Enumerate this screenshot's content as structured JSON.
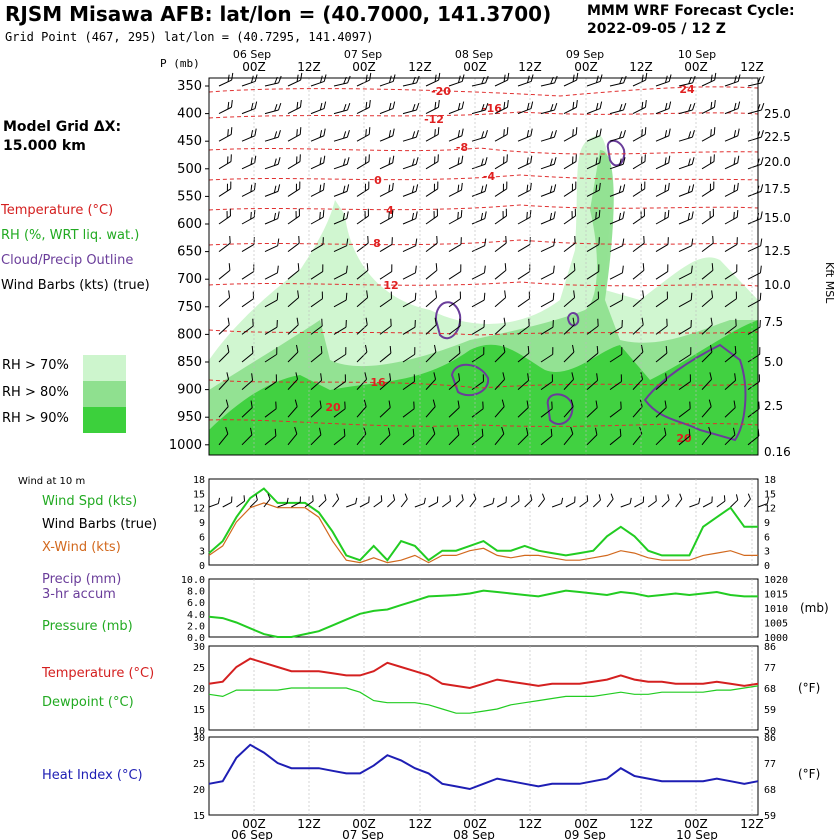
{
  "header": {
    "title": "RJSM Misawa AFB:  lat/lon = (40.7000, 141.3700)",
    "subtitle": "Grid Point (467, 295) lat/lon = (40.7295, 141.4097)",
    "cycle_line1": "MMM WRF Forecast Cycle:",
    "cycle_line2": "2022-09-05 / 12  Z"
  },
  "left_panel": {
    "grid_label_1": "Model Grid ΔX:",
    "grid_label_2": " 15.000 km",
    "legend": [
      {
        "text": "Temperature (°C)",
        "color": "#d42020"
      },
      {
        "text": "RH (%, WRT liq. wat.)",
        "color": "#22aa22"
      },
      {
        "text": "Cloud/Precip Outline",
        "color": "#6a3d9a"
      },
      {
        "text": "Wind Barbs (kts) (true)",
        "color": "#000000"
      }
    ],
    "rh_legend": [
      {
        "text": "RH > 70%",
        "color": "#cdf5cd"
      },
      {
        "text": "RH > 80%",
        "color": "#8fe08f"
      },
      {
        "text": "RH > 90%",
        "color": "#3cd03c"
      }
    ]
  },
  "time_axis": {
    "hours": [
      "00Z",
      "12Z",
      "00Z",
      "12Z",
      "00Z",
      "12Z",
      "00Z",
      "12Z",
      "00Z",
      "12Z"
    ],
    "dates": [
      "06 Sep",
      "07 Sep",
      "08 Sep",
      "09 Sep",
      "10 Sep"
    ]
  },
  "cross_section": {
    "p_label": "P (mb)",
    "pressure_ticks": [
      "350",
      "400",
      "450",
      "500",
      "550",
      "600",
      "650",
      "700",
      "750",
      "800",
      "850",
      "900",
      "950",
      "1000"
    ],
    "height_ticks": [
      "25.0",
      "22.5",
      "20.0",
      "17.5",
      "15.0",
      "12.5",
      "10.0",
      "7.5",
      "5.0",
      "2.5",
      "0.16"
    ],
    "height_label": "Kft MSL",
    "temp_labels": [
      "-20",
      "-16",
      "-12",
      "-8",
      "-4",
      "0",
      "4",
      "8",
      "12",
      "16",
      "20",
      "24",
      "20"
    ]
  },
  "panels": {
    "wind_header": "Wind at 10 m",
    "wind_labels": [
      {
        "text": "Wind Spd (kts)",
        "color": "#22aa22"
      },
      {
        "text": "Wind Barbs (true)",
        "color": "#000000"
      },
      {
        "text": "X-Wind (kts)",
        "color": "#d2691e"
      }
    ],
    "wind_ticks": [
      "18",
      "15",
      "12",
      "9",
      "6",
      "3",
      "0"
    ],
    "precip_labels": [
      {
        "text": "Precip (mm)",
        "color": "#6a3d9a"
      },
      {
        "text": "3-hr accum",
        "color": "#6a3d9a"
      },
      {
        "text": "Pressure (mb)",
        "color": "#22aa22"
      }
    ],
    "precip_ticks": [
      "10.0",
      "8.0",
      "6.0",
      "4.0",
      "2.0",
      "0.0"
    ],
    "pressure_ticks": [
      "1020",
      "1015",
      "1010",
      "1005",
      "1000"
    ],
    "pressure_unit": "(mb)",
    "temp_labels": [
      {
        "text": "Temperature (°C)",
        "color": "#d42020"
      },
      {
        "text": "Dewpoint (°C)",
        "color": "#22aa22"
      }
    ],
    "temp_ticks_c": [
      "30",
      "25",
      "20",
      "15",
      "10"
    ],
    "temp_ticks_f": [
      "86",
      "77",
      "68",
      "59",
      "50"
    ],
    "f_unit": "(°F)",
    "heat_label": {
      "text": "Heat Index (°C)",
      "color": "#1e1eb4"
    },
    "heat_ticks_c": [
      "30",
      "25",
      "20",
      "15"
    ],
    "heat_ticks_f": [
      "86",
      "77",
      "68",
      "59"
    ]
  },
  "chart_data": [
    {
      "type": "line",
      "title": "Wind at 10 m",
      "x": [
        "05 12Z",
        "05 15Z",
        "05 18Z",
        "05 21Z",
        "06 00Z",
        "06 03Z",
        "06 06Z",
        "06 09Z",
        "06 12Z",
        "06 15Z",
        "06 18Z",
        "06 21Z",
        "07 00Z",
        "07 03Z",
        "07 06Z",
        "07 09Z",
        "07 12Z",
        "07 15Z",
        "07 18Z",
        "07 21Z",
        "08 00Z",
        "08 03Z",
        "08 06Z",
        "08 09Z",
        "08 12Z",
        "08 15Z",
        "08 18Z",
        "08 21Z",
        "09 00Z",
        "09 03Z",
        "09 06Z",
        "09 09Z",
        "09 12Z",
        "09 15Z",
        "09 18Z",
        "09 21Z",
        "10 00Z",
        "10 03Z",
        "10 06Z",
        "10 09Z",
        "10 12Z"
      ],
      "ylim": [
        0,
        18
      ],
      "series": [
        {
          "name": "Wind Spd (kts)",
          "color": "#22cc22",
          "values": [
            2.5,
            5,
            10,
            14,
            16,
            13,
            13,
            13,
            11,
            7,
            2,
            1,
            4,
            1,
            5,
            4,
            1,
            3,
            3,
            4,
            5,
            3,
            3,
            4,
            3,
            2.5,
            2,
            2.5,
            3,
            6,
            8,
            6,
            3,
            2,
            2,
            2,
            8,
            10,
            12,
            8,
            8
          ]
        },
        {
          "name": "X-Wind (kts)",
          "color": "#d2691e",
          "values": [
            2,
            4,
            9,
            12,
            13,
            12,
            12,
            12,
            10,
            5,
            1,
            0.5,
            1.5,
            0.5,
            1,
            2,
            0.5,
            2,
            2,
            3,
            3.5,
            2,
            1.5,
            2,
            2,
            1.5,
            1,
            1,
            1.5,
            2,
            3,
            2.5,
            1.5,
            1,
            1,
            1,
            2,
            2.5,
            3,
            2,
            2
          ]
        }
      ]
    },
    {
      "type": "line",
      "title": "Pressure (mb)",
      "x": [
        "05 12Z",
        "05 15Z",
        "05 18Z",
        "05 21Z",
        "06 00Z",
        "06 03Z",
        "06 06Z",
        "06 09Z",
        "06 12Z",
        "06 15Z",
        "06 18Z",
        "06 21Z",
        "07 00Z",
        "07 03Z",
        "07 06Z",
        "07 09Z",
        "07 12Z",
        "07 15Z",
        "07 18Z",
        "07 21Z",
        "08 00Z",
        "08 03Z",
        "08 06Z",
        "08 09Z",
        "08 12Z",
        "08 15Z",
        "08 18Z",
        "08 21Z",
        "09 00Z",
        "09 03Z",
        "09 06Z",
        "09 09Z",
        "09 12Z",
        "09 15Z",
        "09 18Z",
        "09 21Z",
        "10 00Z",
        "10 03Z",
        "10 06Z",
        "10 09Z",
        "10 12Z"
      ],
      "ylim": [
        1000,
        1020
      ],
      "series": [
        {
          "name": "Pressure (mb)",
          "color": "#22cc22",
          "values": [
            1007,
            1006.5,
            1005,
            1003,
            1001,
            1000,
            1000,
            1001,
            1002,
            1004,
            1006,
            1008,
            1009,
            1009.5,
            1011,
            1012.5,
            1014,
            1014.2,
            1014.5,
            1015,
            1016,
            1015.5,
            1015,
            1014.5,
            1014,
            1015,
            1016,
            1015.5,
            1015,
            1014.5,
            1015.5,
            1015,
            1014,
            1014.5,
            1015,
            1014.5,
            1015,
            1015.5,
            1014.5,
            1014,
            1014
          ]
        }
      ]
    },
    {
      "type": "line",
      "title": "Temperature / Dewpoint",
      "x": [
        "05 12Z",
        "05 15Z",
        "05 18Z",
        "05 21Z",
        "06 00Z",
        "06 03Z",
        "06 06Z",
        "06 09Z",
        "06 12Z",
        "06 15Z",
        "06 18Z",
        "06 21Z",
        "07 00Z",
        "07 03Z",
        "07 06Z",
        "07 09Z",
        "07 12Z",
        "07 15Z",
        "07 18Z",
        "07 21Z",
        "08 00Z",
        "08 03Z",
        "08 06Z",
        "08 09Z",
        "08 12Z",
        "08 15Z",
        "08 18Z",
        "08 21Z",
        "09 00Z",
        "09 03Z",
        "09 06Z",
        "09 09Z",
        "09 12Z",
        "09 15Z",
        "09 18Z",
        "09 21Z",
        "10 00Z",
        "10 03Z",
        "10 06Z",
        "10 09Z",
        "10 12Z"
      ],
      "ylim": [
        10,
        30
      ],
      "series": [
        {
          "name": "Temperature (°C)",
          "color": "#d42020",
          "values": [
            21,
            21.5,
            25,
            27,
            26,
            25,
            24,
            24,
            24,
            23.5,
            23,
            23,
            24,
            26,
            25,
            24,
            23,
            21,
            20.5,
            20,
            21,
            22,
            21.5,
            21,
            20.5,
            21,
            21,
            21,
            21.5,
            22,
            23,
            22,
            21.5,
            21.5,
            21,
            21,
            21,
            21.5,
            21,
            20.5,
            21
          ]
        },
        {
          "name": "Dewpoint (°C)",
          "color": "#22cc22",
          "values": [
            18.5,
            18,
            19.5,
            19.5,
            19.5,
            19.5,
            20,
            20,
            20,
            20,
            20,
            19,
            17,
            16.5,
            16.5,
            16.5,
            16,
            15,
            14,
            14,
            14.5,
            15,
            16,
            16.5,
            17,
            17.5,
            18,
            18,
            18,
            18.5,
            19,
            18.5,
            18.5,
            19,
            19,
            19,
            19,
            19.5,
            19.5,
            20,
            20.5
          ]
        }
      ]
    },
    {
      "type": "line",
      "title": "Heat Index (°C)",
      "x": [
        "05 12Z",
        "05 15Z",
        "05 18Z",
        "05 21Z",
        "06 00Z",
        "06 03Z",
        "06 06Z",
        "06 09Z",
        "06 12Z",
        "06 15Z",
        "06 18Z",
        "06 21Z",
        "07 00Z",
        "07 03Z",
        "07 06Z",
        "07 09Z",
        "07 12Z",
        "07 15Z",
        "07 18Z",
        "07 21Z",
        "08 00Z",
        "08 03Z",
        "08 06Z",
        "08 09Z",
        "08 12Z",
        "08 15Z",
        "08 18Z",
        "08 21Z",
        "09 00Z",
        "09 03Z",
        "09 06Z",
        "09 09Z",
        "09 12Z",
        "09 15Z",
        "09 18Z",
        "09 21Z",
        "10 00Z",
        "10 03Z",
        "10 06Z",
        "10 09Z",
        "10 12Z"
      ],
      "ylim": [
        15,
        30
      ],
      "series": [
        {
          "name": "Heat Index (°C)",
          "color": "#1e1eb4",
          "values": [
            21,
            21.5,
            26,
            28.5,
            27,
            25,
            24,
            24,
            24,
            23.5,
            23,
            23,
            24.5,
            26.5,
            25.5,
            24,
            23,
            21,
            20.5,
            20,
            21,
            22,
            21.5,
            21,
            20.5,
            21,
            21,
            21,
            21.5,
            22,
            24,
            22.5,
            22,
            21.5,
            21.5,
            21.5,
            21.5,
            22,
            21.5,
            21,
            21.5
          ]
        }
      ]
    }
  ]
}
